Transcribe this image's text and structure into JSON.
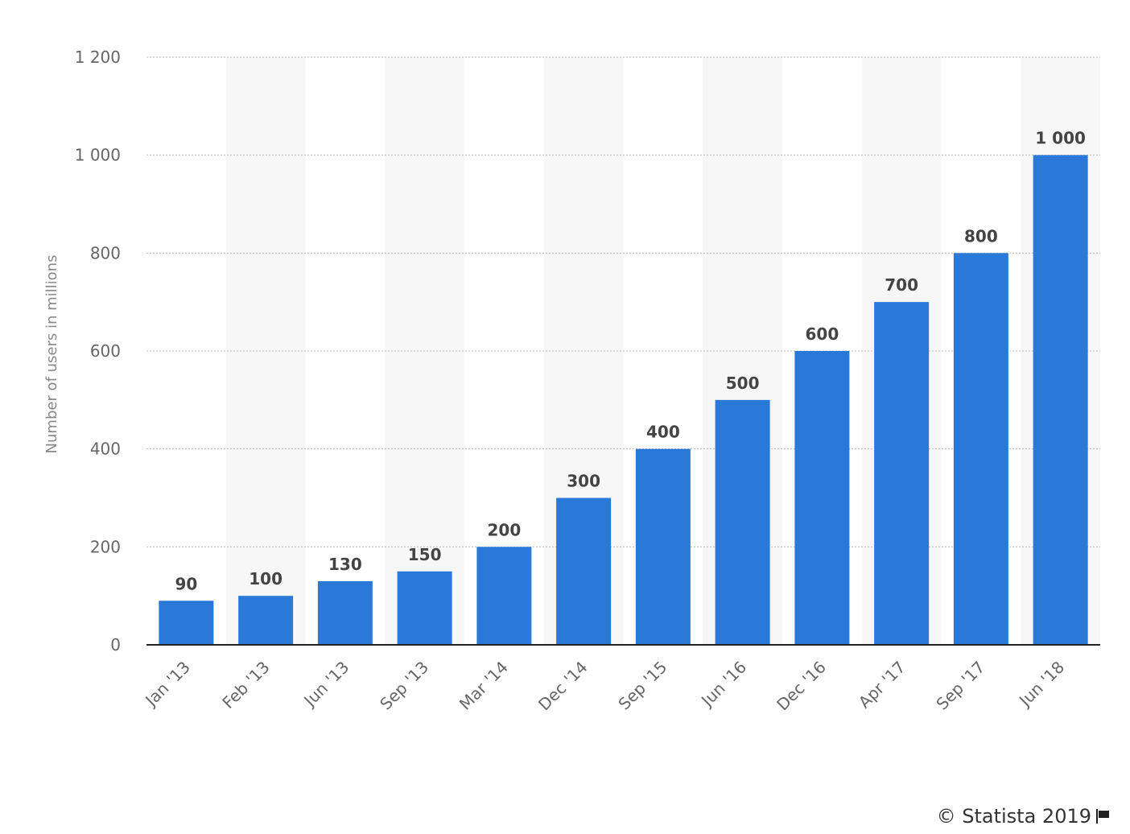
{
  "chart_data": {
    "type": "bar",
    "categories": [
      "Jan '13",
      "Feb '13",
      "Jun '13",
      "Sep '13",
      "Mar '14",
      "Dec '14",
      "Sep '15",
      "Jun '16",
      "Dec '16",
      "Apr '17",
      "Sep '17",
      "Jun '18"
    ],
    "values": [
      90,
      100,
      130,
      150,
      200,
      300,
      400,
      500,
      600,
      700,
      800,
      1000
    ],
    "value_labels": [
      "90",
      "100",
      "130",
      "150",
      "200",
      "300",
      "400",
      "500",
      "600",
      "700",
      "800",
      "1 000"
    ],
    "ylabel": "Number of users in millions",
    "ylim": [
      0,
      1200
    ],
    "yticks": [
      0,
      200,
      400,
      600,
      800,
      1000,
      1200
    ],
    "ytick_labels": [
      "0",
      "200",
      "400",
      "600",
      "800",
      "1 000",
      "1 200"
    ],
    "grid": true,
    "bar_color": "#2a78d8",
    "band_color": "#f7f7f7"
  },
  "credit": {
    "text": "© Statista 2019",
    "icon": "flag-icon"
  }
}
